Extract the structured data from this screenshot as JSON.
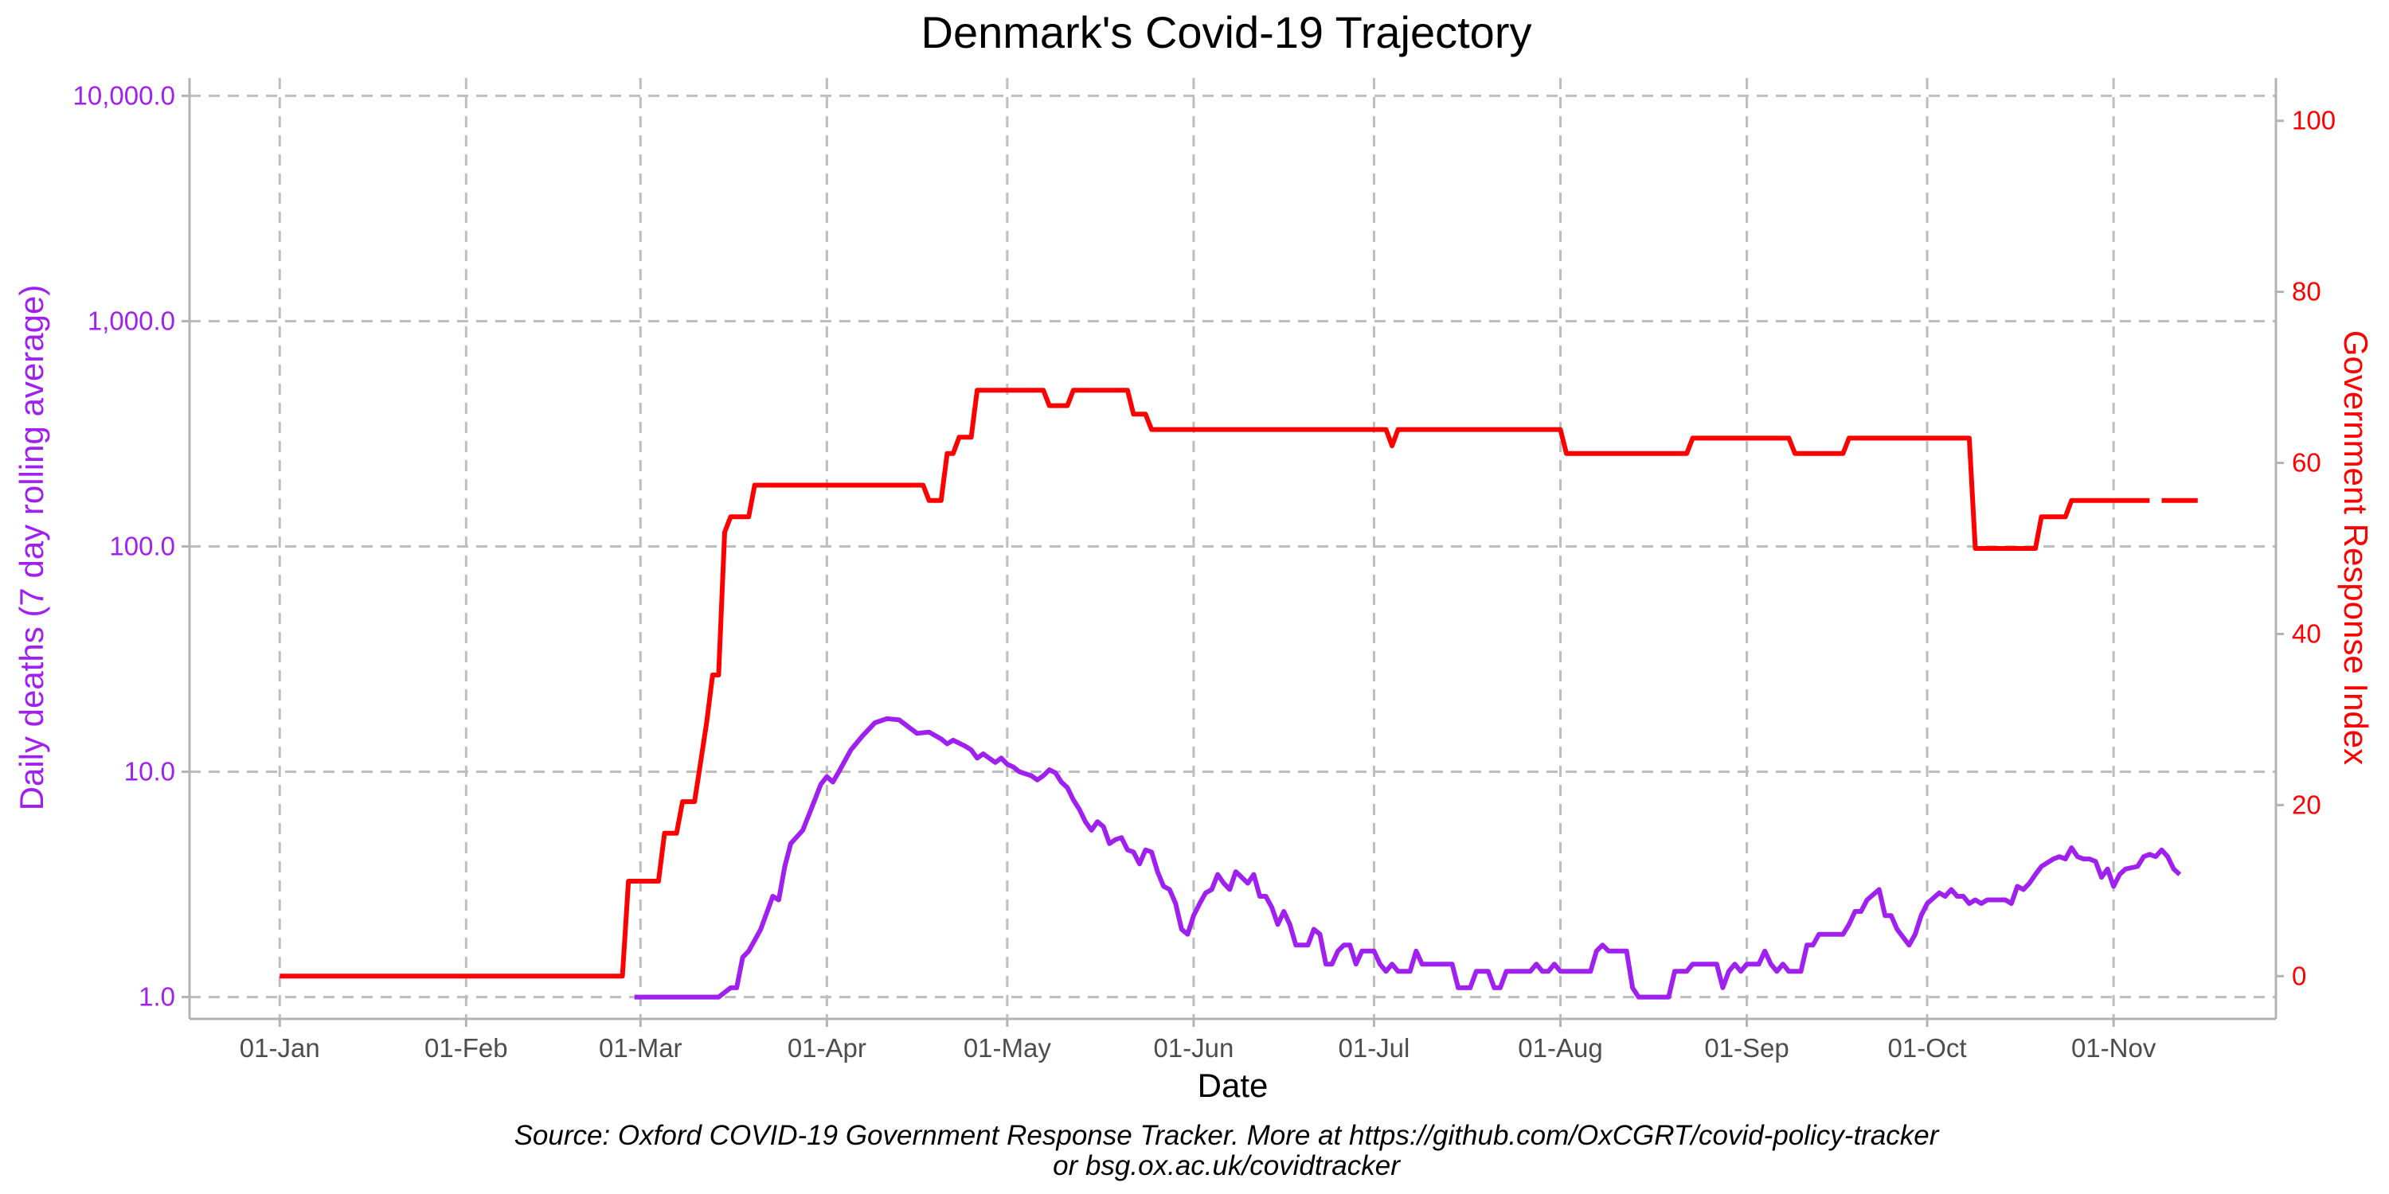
{
  "chart_data": {
    "type": "line",
    "title": "Denmark's Covid-19 Trajectory",
    "xlabel": "Date",
    "ylabel_left": "Daily deaths (7 day rolling average)",
    "ylabel_right": "Government Response Index",
    "caption_line1": "Source: Oxford COVID-19 Government Response Tracker. More at https://github.com/OxCGRT/covid-policy-tracker",
    "caption_line2": "or bsg.ox.ac.uk/covidtracker",
    "x_ticks": [
      "01-Jan",
      "01-Feb",
      "01-Mar",
      "01-Apr",
      "01-May",
      "01-Jun",
      "01-Jul",
      "01-Aug",
      "01-Sep",
      "01-Oct",
      "01-Nov"
    ],
    "y_left_scale": "log10",
    "y_left_lim": [
      0.8,
      12000
    ],
    "y_left_ticks": [
      "1.0",
      "10.0",
      "100.0",
      "1,000.0",
      "10,000.0"
    ],
    "y_right_lim": [
      -5,
      105
    ],
    "y_right_ticks": [
      "0",
      "20",
      "40",
      "60",
      "80",
      "100"
    ],
    "x_range": [
      "2019-12-17",
      "2020-11-28"
    ],
    "grid": true,
    "legend": "none",
    "colors": {
      "deaths": "#a020f0",
      "index": "#ff0000",
      "grid": "#bebebe",
      "axis": "#b3b3b3",
      "tick_text": "#4d4d4d"
    },
    "series": [
      {
        "name": "Daily deaths (7 day rolling average)",
        "axis": "left",
        "color": "#a020f0",
        "points": [
          [
            "2020-02-29",
            1.0
          ],
          [
            "2020-03-14",
            1.0
          ],
          [
            "2020-03-16",
            1.1
          ],
          [
            "2020-03-17",
            1.1
          ],
          [
            "2020-03-18",
            1.5
          ],
          [
            "2020-03-19",
            1.6
          ],
          [
            "2020-03-21",
            2.0
          ],
          [
            "2020-03-23",
            2.8
          ],
          [
            "2020-03-24",
            2.7
          ],
          [
            "2020-03-25",
            3.8
          ],
          [
            "2020-03-26",
            4.8
          ],
          [
            "2020-03-28",
            5.5
          ],
          [
            "2020-03-30",
            7.5
          ],
          [
            "2020-03-31",
            8.8
          ],
          [
            "2020-04-01",
            9.5
          ],
          [
            "2020-04-02",
            9.0
          ],
          [
            "2020-04-03",
            10.0
          ],
          [
            "2020-04-05",
            12.5
          ],
          [
            "2020-04-07",
            14.5
          ],
          [
            "2020-04-09",
            16.5
          ],
          [
            "2020-04-11",
            17.2
          ],
          [
            "2020-04-13",
            17.0
          ],
          [
            "2020-04-15",
            15.5
          ],
          [
            "2020-04-16",
            14.8
          ],
          [
            "2020-04-18",
            15.0
          ],
          [
            "2020-04-20",
            14.0
          ],
          [
            "2020-04-21",
            13.3
          ],
          [
            "2020-04-22",
            13.8
          ],
          [
            "2020-04-24",
            13.0
          ],
          [
            "2020-04-25",
            12.5
          ],
          [
            "2020-04-26",
            11.5
          ],
          [
            "2020-04-27",
            12.0
          ],
          [
            "2020-04-28",
            11.5
          ],
          [
            "2020-04-29",
            11.0
          ],
          [
            "2020-04-30",
            11.5
          ],
          [
            "2020-05-01",
            10.8
          ],
          [
            "2020-05-02",
            10.5
          ],
          [
            "2020-05-03",
            10.0
          ],
          [
            "2020-05-04",
            9.8
          ],
          [
            "2020-05-05",
            9.6
          ],
          [
            "2020-05-06",
            9.2
          ],
          [
            "2020-05-07",
            9.6
          ],
          [
            "2020-05-08",
            10.2
          ],
          [
            "2020-05-09",
            9.9
          ],
          [
            "2020-05-10",
            9.0
          ],
          [
            "2020-05-11",
            8.5
          ],
          [
            "2020-05-12",
            7.5
          ],
          [
            "2020-05-13",
            6.8
          ],
          [
            "2020-05-14",
            6.0
          ],
          [
            "2020-05-15",
            5.5
          ],
          [
            "2020-05-16",
            6.0
          ],
          [
            "2020-05-17",
            5.7
          ],
          [
            "2020-05-18",
            4.8
          ],
          [
            "2020-05-19",
            5.0
          ],
          [
            "2020-05-20",
            5.1
          ],
          [
            "2020-05-21",
            4.5
          ],
          [
            "2020-05-22",
            4.4
          ],
          [
            "2020-05-23",
            3.9
          ],
          [
            "2020-05-24",
            4.5
          ],
          [
            "2020-05-25",
            4.4
          ],
          [
            "2020-05-26",
            3.6
          ],
          [
            "2020-05-27",
            3.1
          ],
          [
            "2020-05-28",
            3.0
          ],
          [
            "2020-05-29",
            2.6
          ],
          [
            "2020-05-30",
            2.0
          ],
          [
            "2020-05-31",
            1.9
          ],
          [
            "2020-06-01",
            2.3
          ],
          [
            "2020-06-02",
            2.6
          ],
          [
            "2020-06-03",
            2.9
          ],
          [
            "2020-06-04",
            3.0
          ],
          [
            "2020-06-05",
            3.5
          ],
          [
            "2020-06-06",
            3.2
          ],
          [
            "2020-06-07",
            3.0
          ],
          [
            "2020-06-08",
            3.6
          ],
          [
            "2020-06-09",
            3.4
          ],
          [
            "2020-06-10",
            3.2
          ],
          [
            "2020-06-11",
            3.5
          ],
          [
            "2020-06-12",
            2.8
          ],
          [
            "2020-06-13",
            2.8
          ],
          [
            "2020-06-14",
            2.5
          ],
          [
            "2020-06-15",
            2.1
          ],
          [
            "2020-06-16",
            2.4
          ],
          [
            "2020-06-17",
            2.1
          ],
          [
            "2020-06-18",
            1.7
          ],
          [
            "2020-06-20",
            1.7
          ],
          [
            "2020-06-21",
            2.0
          ],
          [
            "2020-06-22",
            1.9
          ],
          [
            "2020-06-23",
            1.4
          ],
          [
            "2020-06-24",
            1.4
          ],
          [
            "2020-06-25",
            1.6
          ],
          [
            "2020-06-26",
            1.7
          ],
          [
            "2020-06-27",
            1.7
          ],
          [
            "2020-06-28",
            1.4
          ],
          [
            "2020-06-29",
            1.6
          ],
          [
            "2020-06-30",
            1.6
          ],
          [
            "2020-07-01",
            1.6
          ],
          [
            "2020-07-02",
            1.4
          ],
          [
            "2020-07-03",
            1.3
          ],
          [
            "2020-07-04",
            1.4
          ],
          [
            "2020-07-05",
            1.3
          ],
          [
            "2020-07-06",
            1.3
          ],
          [
            "2020-07-07",
            1.3
          ],
          [
            "2020-07-08",
            1.6
          ],
          [
            "2020-07-09",
            1.4
          ],
          [
            "2020-07-14",
            1.4
          ],
          [
            "2020-07-15",
            1.1
          ],
          [
            "2020-07-17",
            1.1
          ],
          [
            "2020-07-18",
            1.3
          ],
          [
            "2020-07-20",
            1.3
          ],
          [
            "2020-07-21",
            1.1
          ],
          [
            "2020-07-22",
            1.1
          ],
          [
            "2020-07-23",
            1.3
          ],
          [
            "2020-07-27",
            1.3
          ],
          [
            "2020-07-28",
            1.4
          ],
          [
            "2020-07-29",
            1.3
          ],
          [
            "2020-07-30",
            1.3
          ],
          [
            "2020-07-31",
            1.4
          ],
          [
            "2020-08-01",
            1.3
          ],
          [
            "2020-08-06",
            1.3
          ],
          [
            "2020-08-07",
            1.6
          ],
          [
            "2020-08-08",
            1.7
          ],
          [
            "2020-08-09",
            1.6
          ],
          [
            "2020-08-12",
            1.6
          ],
          [
            "2020-08-13",
            1.1
          ],
          [
            "2020-08-14",
            1.0
          ],
          [
            "2020-08-19",
            1.0
          ],
          [
            "2020-08-20",
            1.3
          ],
          [
            "2020-08-22",
            1.3
          ],
          [
            "2020-08-23",
            1.4
          ],
          [
            "2020-08-27",
            1.4
          ],
          [
            "2020-08-28",
            1.1
          ],
          [
            "2020-08-29",
            1.3
          ],
          [
            "2020-08-30",
            1.4
          ],
          [
            "2020-08-31",
            1.3
          ],
          [
            "2020-09-01",
            1.4
          ],
          [
            "2020-09-03",
            1.4
          ],
          [
            "2020-09-04",
            1.6
          ],
          [
            "2020-09-05",
            1.4
          ],
          [
            "2020-09-06",
            1.3
          ],
          [
            "2020-09-07",
            1.4
          ],
          [
            "2020-09-08",
            1.3
          ],
          [
            "2020-09-10",
            1.3
          ],
          [
            "2020-09-11",
            1.7
          ],
          [
            "2020-09-12",
            1.7
          ],
          [
            "2020-09-13",
            1.9
          ],
          [
            "2020-09-17",
            1.9
          ],
          [
            "2020-09-18",
            2.1
          ],
          [
            "2020-09-19",
            2.4
          ],
          [
            "2020-09-20",
            2.4
          ],
          [
            "2020-09-21",
            2.7
          ],
          [
            "2020-09-23",
            3.0
          ],
          [
            "2020-09-24",
            2.3
          ],
          [
            "2020-09-25",
            2.3
          ],
          [
            "2020-09-26",
            2.0
          ],
          [
            "2020-09-28",
            1.7
          ],
          [
            "2020-09-29",
            1.9
          ],
          [
            "2020-09-30",
            2.3
          ],
          [
            "2020-10-01",
            2.6
          ],
          [
            "2020-10-03",
            2.9
          ],
          [
            "2020-10-04",
            2.8
          ],
          [
            "2020-10-05",
            3.0
          ],
          [
            "2020-10-06",
            2.8
          ],
          [
            "2020-10-07",
            2.8
          ],
          [
            "2020-10-08",
            2.6
          ],
          [
            "2020-10-09",
            2.7
          ],
          [
            "2020-10-10",
            2.6
          ],
          [
            "2020-10-11",
            2.7
          ],
          [
            "2020-10-12",
            2.7
          ],
          [
            "2020-10-13",
            2.7
          ],
          [
            "2020-10-14",
            2.7
          ],
          [
            "2020-10-15",
            2.6
          ],
          [
            "2020-10-16",
            3.1
          ],
          [
            "2020-10-17",
            3.0
          ],
          [
            "2020-10-18",
            3.2
          ],
          [
            "2020-10-19",
            3.5
          ],
          [
            "2020-10-20",
            3.8
          ],
          [
            "2020-10-22",
            4.1
          ],
          [
            "2020-10-23",
            4.2
          ],
          [
            "2020-10-24",
            4.1
          ],
          [
            "2020-10-25",
            4.6
          ],
          [
            "2020-10-26",
            4.2
          ],
          [
            "2020-10-27",
            4.1
          ],
          [
            "2020-10-28",
            4.1
          ],
          [
            "2020-10-29",
            4.0
          ],
          [
            "2020-10-30",
            3.4
          ],
          [
            "2020-10-31",
            3.7
          ],
          [
            "2020-11-01",
            3.1
          ],
          [
            "2020-11-02",
            3.5
          ],
          [
            "2020-11-03",
            3.7
          ],
          [
            "2020-11-05",
            3.8
          ],
          [
            "2020-11-06",
            4.2
          ],
          [
            "2020-11-07",
            4.3
          ],
          [
            "2020-11-08",
            4.2
          ],
          [
            "2020-11-09",
            4.5
          ],
          [
            "2020-11-10",
            4.2
          ],
          [
            "2020-11-11",
            3.7
          ],
          [
            "2020-11-12",
            3.5
          ]
        ]
      },
      {
        "name": "Government Response Index",
        "axis": "right",
        "color": "#ff0000",
        "points": [
          [
            "2020-01-01",
            0
          ],
          [
            "2020-02-27",
            0
          ],
          [
            "2020-02-28",
            11.1
          ],
          [
            "2020-03-04",
            11.1
          ],
          [
            "2020-03-05",
            16.7
          ],
          [
            "2020-03-07",
            16.7
          ],
          [
            "2020-03-08",
            20.4
          ],
          [
            "2020-03-10",
            20.4
          ],
          [
            "2020-03-11",
            25
          ],
          [
            "2020-03-12",
            29.6
          ],
          [
            "2020-03-13",
            35.2
          ],
          [
            "2020-03-14",
            35.2
          ],
          [
            "2020-03-15",
            51.9
          ],
          [
            "2020-03-16",
            53.7
          ],
          [
            "2020-03-19",
            53.7
          ],
          [
            "2020-03-20",
            57.4
          ],
          [
            "2020-04-17",
            57.4
          ],
          [
            "2020-04-18",
            55.6
          ],
          [
            "2020-04-20",
            55.6
          ],
          [
            "2020-04-21",
            61.1
          ],
          [
            "2020-04-22",
            61.1
          ],
          [
            "2020-04-23",
            63.0
          ],
          [
            "2020-04-25",
            63.0
          ],
          [
            "2020-04-26",
            68.5
          ],
          [
            "2020-05-07",
            68.5
          ],
          [
            "2020-05-08",
            66.7
          ],
          [
            "2020-05-11",
            66.7
          ],
          [
            "2020-05-12",
            68.5
          ],
          [
            "2020-05-21",
            68.5
          ],
          [
            "2020-05-22",
            65.7
          ],
          [
            "2020-05-24",
            65.7
          ],
          [
            "2020-05-25",
            63.9
          ],
          [
            "2020-07-03",
            63.9
          ],
          [
            "2020-07-04",
            62.0
          ],
          [
            "2020-07-05",
            63.9
          ],
          [
            "2020-08-01",
            63.9
          ],
          [
            "2020-08-02",
            61.1
          ],
          [
            "2020-08-22",
            61.1
          ],
          [
            "2020-08-23",
            62.9
          ],
          [
            "2020-09-08",
            62.9
          ],
          [
            "2020-09-09",
            61.1
          ],
          [
            "2020-09-17",
            61.1
          ],
          [
            "2020-09-18",
            62.9
          ],
          [
            "2020-10-08",
            62.9
          ],
          [
            "2020-10-09",
            50
          ],
          [
            "2020-10-19",
            50
          ],
          [
            "2020-10-20",
            53.7
          ],
          [
            "2020-10-24",
            53.7
          ],
          [
            "2020-10-25",
            55.6
          ],
          [
            "2020-11-07",
            55.6
          ]
        ],
        "points_after_gap": [
          [
            "2020-11-09",
            55.6
          ],
          [
            "2020-11-15",
            55.6
          ]
        ]
      }
    ]
  }
}
